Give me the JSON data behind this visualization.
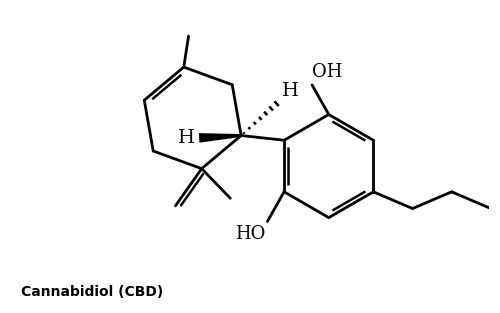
{
  "title": "Cannabidiol (CBD)",
  "background_color": "#ffffff",
  "line_color": "#000000",
  "line_width": 2.0,
  "font_size_label": 12,
  "font_size_title": 10,
  "figsize": [
    5.0,
    3.13
  ],
  "dpi": 100,
  "xlim": [
    0,
    10
  ],
  "ylim": [
    0,
    6.5
  ]
}
